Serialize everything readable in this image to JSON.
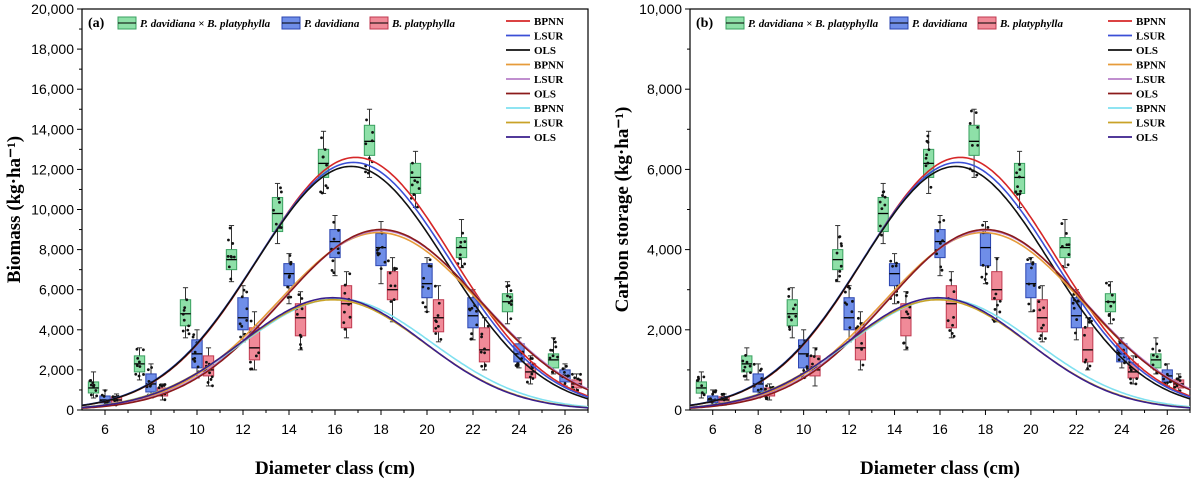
{
  "chart_data": [
    {
      "type": "box+line",
      "panel_label": "(a)",
      "xlabel": "Diameter class (cm)",
      "ylabel": "Biomass (kg·ha⁻¹)",
      "xlim": [
        5,
        27
      ],
      "ylim": [
        0,
        20000
      ],
      "xticks": [
        "6",
        "8",
        "10",
        "12",
        "14",
        "16",
        "18",
        "20",
        "22",
        "24",
        "26"
      ],
      "yticks": [
        "0",
        "2,000",
        "4,000",
        "6,000",
        "8,000",
        "10,000",
        "12,000",
        "14,000",
        "16,000",
        "18,000",
        "20,000"
      ],
      "box_legend": [
        "P. davidiana × B. platyphylla",
        "P. davidiana",
        "B. platyphylla"
      ],
      "box_groups": [
        {
          "group": 0,
          "x": [
            5.5,
            7.5,
            9.5,
            11.5,
            13.5,
            15.5,
            17.5,
            19.5,
            21.5,
            23.5,
            25.5
          ],
          "q1": [
            850,
            1900,
            4200,
            7000,
            8900,
            11600,
            12700,
            10800,
            7600,
            4900,
            2100
          ],
          "median": [
            1100,
            2300,
            4800,
            7500,
            9800,
            12300,
            13400,
            11600,
            8100,
            5400,
            2500
          ],
          "q3": [
            1400,
            2700,
            5500,
            8000,
            10600,
            13000,
            14200,
            12300,
            8600,
            5800,
            2800
          ],
          "min": [
            600,
            1500,
            3600,
            6400,
            8300,
            10800,
            11600,
            10100,
            7100,
            4300,
            1800
          ],
          "max": [
            1900,
            3100,
            6100,
            9200,
            11300,
            13900,
            15000,
            12900,
            9500,
            6400,
            3600
          ]
        },
        {
          "group": 1,
          "x": [
            6.0,
            8.0,
            10.0,
            12.0,
            14.0,
            16.0,
            18.0,
            20.0,
            22.0,
            24.0,
            26.0
          ],
          "q1": [
            350,
            900,
            2100,
            4000,
            6200,
            7600,
            7200,
            5600,
            4100,
            2400,
            1400
          ],
          "median": [
            500,
            1300,
            2800,
            4600,
            6800,
            8400,
            8100,
            6300,
            4700,
            2800,
            1700
          ],
          "q3": [
            700,
            1800,
            3500,
            5600,
            7300,
            9000,
            8800,
            7300,
            5600,
            3300,
            2000
          ],
          "min": [
            200,
            600,
            1600,
            3400,
            5300,
            6700,
            6300,
            4900,
            3500,
            2100,
            1200
          ],
          "max": [
            1000,
            2300,
            4000,
            6200,
            7800,
            9700,
            9400,
            7600,
            6000,
            3600,
            2300
          ]
        },
        {
          "group": 2,
          "x": [
            6.5,
            8.5,
            10.5,
            12.5,
            14.5,
            16.5,
            18.5,
            20.5,
            22.5,
            24.5,
            26.5
          ],
          "q1": [
            350,
            700,
            1700,
            2500,
            3700,
            4100,
            5500,
            3900,
            2400,
            1600,
            1100
          ],
          "median": [
            500,
            900,
            2000,
            3100,
            4600,
            5300,
            6000,
            4600,
            3000,
            1900,
            1300
          ],
          "q3": [
            650,
            1100,
            2700,
            4100,
            5300,
            6200,
            6900,
            5500,
            4100,
            2300,
            1500
          ],
          "min": [
            250,
            500,
            1200,
            2000,
            3000,
            3600,
            4400,
            3400,
            2000,
            1300,
            900
          ],
          "max": [
            800,
            1300,
            3100,
            4900,
            5900,
            6900,
            7600,
            6200,
            4600,
            2700,
            1800
          ]
        }
      ],
      "curves": [
        {
          "name": "BPNN",
          "group": 0,
          "color": "#d62728",
          "peak": 12600,
          "center": 16.9,
          "sd": 4.2
        },
        {
          "name": "LSUR",
          "group": 0,
          "color": "#3b4fd6",
          "peak": 12350,
          "center": 16.8,
          "sd": 4.2
        },
        {
          "name": "OLS",
          "group": 0,
          "color": "#111111",
          "peak": 12150,
          "center": 16.7,
          "sd": 4.15
        },
        {
          "name": "BPNN",
          "group": 1,
          "color": "#e69b3a",
          "peak": 8850,
          "center": 17.9,
          "sd": 4.4
        },
        {
          "name": "LSUR",
          "group": 1,
          "color": "#b77fc8",
          "peak": 8950,
          "center": 18.0,
          "sd": 4.35
        },
        {
          "name": "OLS",
          "group": 1,
          "color": "#8b1a1a",
          "peak": 9000,
          "center": 18.0,
          "sd": 4.3
        },
        {
          "name": "BPNN",
          "group": 2,
          "color": "#7fe0f0",
          "peak": 5550,
          "center": 16.1,
          "sd": 4.1
        },
        {
          "name": "LSUR",
          "group": 2,
          "color": "#c9a227",
          "peak": 5500,
          "center": 15.9,
          "sd": 4.0
        },
        {
          "name": "OLS",
          "group": 2,
          "color": "#3a1e8c",
          "peak": 5600,
          "center": 15.9,
          "sd": 3.95
        }
      ]
    },
    {
      "type": "box+line",
      "panel_label": "(b)",
      "xlabel": "Diameter class (cm)",
      "ylabel": "Carbon storage (kg·ha⁻¹)",
      "xlim": [
        5,
        27
      ],
      "ylim": [
        0,
        10000
      ],
      "xticks": [
        "6",
        "8",
        "10",
        "12",
        "14",
        "16",
        "18",
        "20",
        "22",
        "24",
        "26"
      ],
      "yticks": [
        "0",
        "2,000",
        "4,000",
        "6,000",
        "8,000",
        "10,000"
      ],
      "box_legend": [
        "P. davidiana × B. platyphylla",
        "P. davidiana",
        "B. platyphylla"
      ],
      "box_groups": [
        {
          "group": 0,
          "x": [
            5.5,
            7.5,
            9.5,
            11.5,
            13.5,
            15.5,
            17.5,
            19.5,
            21.5,
            23.5,
            25.5
          ],
          "q1": [
            420,
            950,
            2100,
            3500,
            4450,
            5800,
            6350,
            5400,
            3800,
            2450,
            1050
          ],
          "median": [
            550,
            1150,
            2400,
            3750,
            4900,
            6150,
            6700,
            5800,
            4050,
            2700,
            1250
          ],
          "q3": [
            700,
            1350,
            2750,
            4000,
            5300,
            6500,
            7100,
            6150,
            4300,
            2900,
            1400
          ],
          "min": [
            300,
            750,
            1800,
            3200,
            4150,
            5400,
            5800,
            5050,
            3550,
            2150,
            900
          ],
          "max": [
            950,
            1550,
            3050,
            4600,
            5650,
            6950,
            7500,
            6450,
            4750,
            3200,
            1800
          ]
        },
        {
          "group": 1,
          "x": [
            6.0,
            8.0,
            10.0,
            12.0,
            14.0,
            16.0,
            18.0,
            20.0,
            22.0,
            24.0,
            26.0
          ],
          "q1": [
            180,
            450,
            1050,
            2000,
            3100,
            3800,
            3600,
            2800,
            2050,
            1200,
            700
          ],
          "median": [
            250,
            650,
            1400,
            2300,
            3400,
            4200,
            4050,
            3150,
            2350,
            1400,
            850
          ],
          "q3": [
            350,
            900,
            1750,
            2800,
            3650,
            4500,
            4400,
            3650,
            2800,
            1650,
            1000
          ],
          "min": [
            100,
            300,
            800,
            1700,
            2650,
            3350,
            3150,
            2450,
            1750,
            1050,
            600
          ],
          "max": [
            500,
            1150,
            2000,
            3100,
            3900,
            4850,
            4700,
            3800,
            3000,
            1800,
            1150
          ]
        },
        {
          "group": 2,
          "x": [
            6.5,
            8.5,
            10.5,
            12.5,
            14.5,
            16.5,
            18.5,
            20.5,
            22.5,
            24.5,
            26.5
          ],
          "q1": [
            180,
            350,
            850,
            1250,
            1850,
            2050,
            2750,
            1950,
            1200,
            800,
            550
          ],
          "median": [
            250,
            450,
            1000,
            1550,
            2300,
            2650,
            3000,
            2300,
            1500,
            950,
            650
          ],
          "q3": [
            330,
            550,
            1350,
            2050,
            2650,
            3100,
            3450,
            2750,
            2050,
            1150,
            750
          ],
          "min": [
            120,
            250,
            600,
            1000,
            1500,
            1800,
            2200,
            1700,
            1000,
            650,
            450
          ],
          "max": [
            400,
            650,
            1550,
            2450,
            2950,
            3450,
            3800,
            3100,
            2300,
            1350,
            900
          ]
        }
      ],
      "curves": [
        {
          "name": "BPNN",
          "group": 0,
          "color": "#d62728",
          "peak": 6300,
          "center": 16.9,
          "sd": 4.2
        },
        {
          "name": "LSUR",
          "group": 0,
          "color": "#3b4fd6",
          "peak": 6175,
          "center": 16.8,
          "sd": 4.2
        },
        {
          "name": "OLS",
          "group": 0,
          "color": "#111111",
          "peak": 6075,
          "center": 16.7,
          "sd": 4.15
        },
        {
          "name": "BPNN",
          "group": 1,
          "color": "#e69b3a",
          "peak": 4425,
          "center": 17.9,
          "sd": 4.4
        },
        {
          "name": "LSUR",
          "group": 1,
          "color": "#b77fc8",
          "peak": 4475,
          "center": 18.0,
          "sd": 4.35
        },
        {
          "name": "OLS",
          "group": 1,
          "color": "#8b1a1a",
          "peak": 4500,
          "center": 18.0,
          "sd": 4.3
        },
        {
          "name": "BPNN",
          "group": 2,
          "color": "#7fe0f0",
          "peak": 2775,
          "center": 16.1,
          "sd": 4.1
        },
        {
          "name": "LSUR",
          "group": 2,
          "color": "#c9a227",
          "peak": 2750,
          "center": 15.9,
          "sd": 4.0
        },
        {
          "name": "OLS",
          "group": 2,
          "color": "#3a1e8c",
          "peak": 2800,
          "center": 15.9,
          "sd": 3.95
        }
      ]
    }
  ],
  "colors": {
    "box_fill": [
      "#8ee0a8",
      "#6f8ee8",
      "#f08a98"
    ],
    "box_stroke": [
      "#3aa060",
      "#2b45b0",
      "#c03a50"
    ]
  }
}
